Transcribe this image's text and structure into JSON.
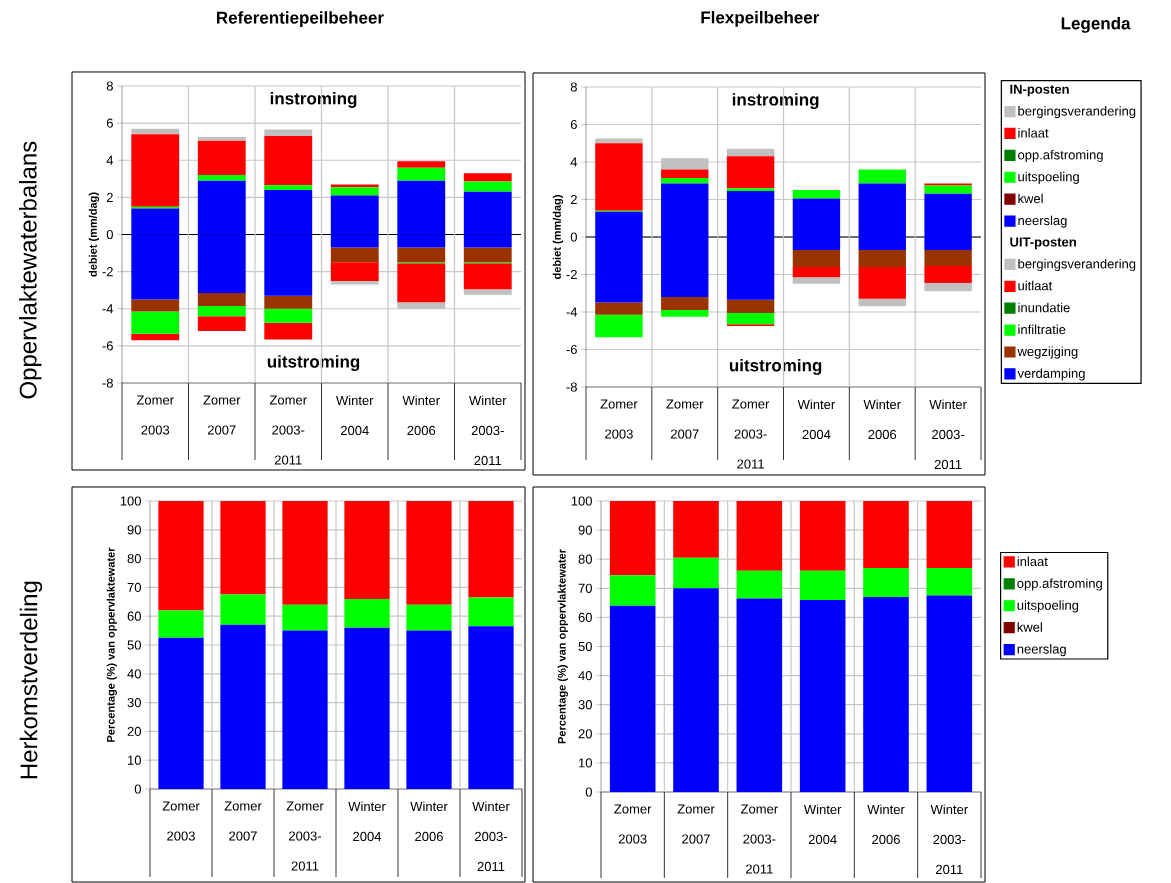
{
  "chart_data": [
    {
      "type": "bar",
      "stacked": true,
      "title": "Referentiepeilbeheer",
      "ylabel": "debiet (mm/dag)",
      "annotations": [
        "instroming",
        "uitstroming",
        "Oppervlaktewaterbalans"
      ],
      "categories": [
        "Zomer 2003",
        "Zomer 2007",
        "Zomer 2003-2011",
        "Winter 2004",
        "Winter 2006",
        "Winter 2003-2011"
      ],
      "ylim": [
        -8,
        8
      ],
      "yticks": [
        -8,
        -6,
        -4,
        -2,
        0,
        2,
        4,
        6,
        8
      ],
      "grid": true,
      "legend": false,
      "series": [
        {
          "color": "#0000ff",
          "values": [
            1.4,
            2.9,
            2.4,
            2.1,
            2.9,
            2.3
          ]
        },
        {
          "color": "#00ff00",
          "values": [
            0.1,
            0.3,
            0.25,
            0.45,
            0.7,
            0.55
          ]
        },
        {
          "color": "#ff0000",
          "values": [
            3.9,
            1.85,
            2.65,
            0.15,
            0.35,
            0.45
          ]
        },
        {
          "color": "#c0c0c0",
          "values": [
            0.3,
            0.2,
            0.35,
            0,
            0,
            0
          ]
        },
        {
          "color": "#0000ff",
          "values": [
            -3.5,
            -3.15,
            -3.3,
            -0.7,
            -0.7,
            -0.7
          ]
        },
        {
          "color": "#993300",
          "values": [
            -0.65,
            -0.7,
            -0.7,
            -0.8,
            -0.8,
            -0.8
          ]
        },
        {
          "color": "#00ff00",
          "values": [
            -1.2,
            -0.55,
            -0.75,
            0,
            -0.05,
            -0.05
          ]
        },
        {
          "color": "#ff0000",
          "values": [
            -0.35,
            -0.8,
            -0.9,
            -1.0,
            -2.1,
            -1.4
          ]
        },
        {
          "color": "#c0c0c0",
          "values": [
            0,
            0,
            0,
            -0.2,
            -0.35,
            -0.3
          ]
        }
      ]
    },
    {
      "type": "bar",
      "stacked": true,
      "title": "Flexpeilbeheer",
      "ylabel": "debiet (mm/dag)",
      "annotations": [
        "instroming",
        "uitstroming",
        "Legenda",
        "IN-posten",
        "UIT-posten"
      ],
      "categories": [
        "Zomer 2003",
        "Zomer 2007",
        "Zomer 2003-2011",
        "Winter 2004",
        "Winter 2006",
        "Winter 2003-2011"
      ],
      "ylim": [
        -8,
        8
      ],
      "yticks": [
        -8,
        -6,
        -4,
        -2,
        0,
        2,
        4,
        6,
        8
      ],
      "grid": true,
      "legend": "right",
      "series": [
        {
          "name": "neerslag",
          "color": "#0000ff",
          "values": [
            1.35,
            2.85,
            2.45,
            2.05,
            2.85,
            2.3
          ]
        },
        {
          "name": "kwel",
          "color": "#800000",
          "values": [
            null,
            null,
            null,
            null,
            null,
            null
          ]
        },
        {
          "name": "uitspoeling",
          "color": "#00ff00",
          "values": [
            0.05,
            0.3,
            0.15,
            0.45,
            0.75,
            0.45
          ]
        },
        {
          "name": "opp.afstroming",
          "color": "#008000",
          "values": [
            null,
            null,
            null,
            null,
            null,
            null
          ]
        },
        {
          "name": "inlaat",
          "color": "#ff0000",
          "values": [
            3.6,
            0.45,
            1.7,
            0,
            0,
            0.1
          ]
        },
        {
          "name": "bergingsverandering",
          "color": "#c0c0c0",
          "values": [
            0.25,
            0.6,
            0.4,
            0,
            0,
            0
          ]
        },
        {
          "name": "verdamping",
          "color": "#0000ff",
          "values": [
            -3.5,
            -3.2,
            -3.35,
            -0.7,
            -0.7,
            -0.7
          ]
        },
        {
          "name": "wegzijging",
          "color": "#993300",
          "values": [
            -0.65,
            -0.7,
            -0.7,
            -0.9,
            -0.9,
            -0.85
          ]
        },
        {
          "name": "infiltratie",
          "color": "#00ff00",
          "values": [
            -1.2,
            -0.35,
            -0.6,
            0,
            0,
            0
          ]
        },
        {
          "name": "inundatie",
          "color": "#008000",
          "values": [
            null,
            null,
            null,
            null,
            null,
            null
          ]
        },
        {
          "name": "uitlaat",
          "color": "#ff0000",
          "values": [
            0,
            0,
            -0.1,
            -0.55,
            -1.7,
            -0.9
          ]
        },
        {
          "name": "bergingsverandering",
          "color": "#c0c0c0",
          "values": [
            0,
            0,
            0,
            -0.35,
            -0.4,
            -0.45
          ]
        }
      ]
    },
    {
      "type": "bar",
      "stacked": true,
      "ylabel": "Percentage (%) van oppervlaktewater",
      "annotations": [
        "Herkomstverdeling"
      ],
      "categories": [
        "Zomer 2003",
        "Zomer 2007",
        "Zomer 2003-2011",
        "Winter 2004",
        "Winter 2006",
        "Winter 2003-2011"
      ],
      "ylim": [
        0,
        100
      ],
      "yticks": [
        0,
        10,
        20,
        30,
        40,
        50,
        60,
        70,
        80,
        90,
        100
      ],
      "grid": true,
      "legend": false,
      "series": [
        {
          "color": "#0000ff",
          "values": [
            52.5,
            57,
            55,
            56,
            55,
            56.5
          ]
        },
        {
          "color": "#00ff00",
          "values": [
            9.5,
            10.5,
            9,
            10,
            9,
            10
          ]
        },
        {
          "color": "#ff0000",
          "values": [
            38,
            32.5,
            36,
            34,
            36,
            33.5
          ]
        }
      ]
    },
    {
      "type": "bar",
      "stacked": true,
      "ylabel": "Percentage (%) van oppervlaktewater",
      "categories": [
        "Zomer 2003",
        "Zomer 2007",
        "Zomer 2003-2011",
        "Winter 2004",
        "Winter 2006",
        "Winter 2003-2011"
      ],
      "ylim": [
        0,
        100
      ],
      "yticks": [
        0,
        10,
        20,
        30,
        40,
        50,
        60,
        70,
        80,
        90,
        100
      ],
      "grid": true,
      "legend": "right",
      "series": [
        {
          "name": "neerslag",
          "color": "#0000ff",
          "values": [
            64,
            70,
            66.5,
            66,
            67,
            67.5
          ]
        },
        {
          "name": "kwel",
          "color": "#800000",
          "values": [
            null,
            null,
            null,
            null,
            null,
            null
          ]
        },
        {
          "name": "uitspoeling",
          "color": "#00ff00",
          "values": [
            10.5,
            10.5,
            9.5,
            10,
            10,
            9.5
          ]
        },
        {
          "name": "opp.afstroming",
          "color": "#008000",
          "values": [
            null,
            null,
            null,
            null,
            null,
            null
          ]
        },
        {
          "name": "inlaat",
          "color": "#ff0000",
          "values": [
            25.5,
            19.5,
            24,
            24,
            23,
            23
          ]
        }
      ]
    }
  ]
}
